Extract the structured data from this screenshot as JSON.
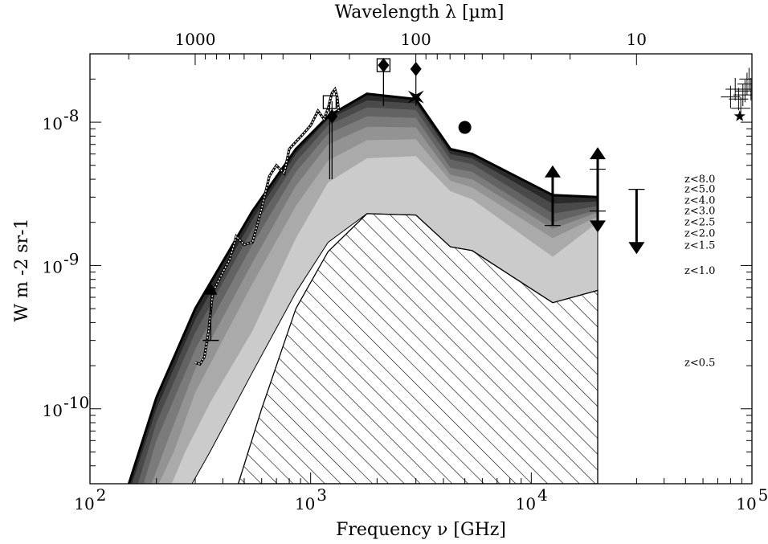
{
  "chart_data": {
    "type": "area",
    "xscale": "log",
    "yscale": "log",
    "xlim": [
      100,
      100000
    ],
    "ylim": [
      3e-11,
      3e-08
    ],
    "xlabel": "Frequency ν [GHz]",
    "ylabel": "W m -2 sr-1",
    "top_axis_label": "Wavelength λ [µm]",
    "x_tick_labels": [
      {
        "value": 100,
        "base": "10",
        "exp": "2"
      },
      {
        "value": 1000,
        "base": "10",
        "exp": "3"
      },
      {
        "value": 10000,
        "base": "10",
        "exp": "4"
      },
      {
        "value": 100000,
        "base": "10",
        "exp": "5"
      }
    ],
    "y_tick_labels": [
      {
        "value": 1e-10,
        "base": "10",
        "exp": "-10"
      },
      {
        "value": 1e-09,
        "base": "10",
        "exp": "-9"
      },
      {
        "value": 1e-08,
        "base": "10",
        "exp": "-8"
      }
    ],
    "top_tick_labels": [
      {
        "freq": 299.8,
        "label": "1000"
      },
      {
        "freq": 2998,
        "label": "100"
      },
      {
        "freq": 29980,
        "label": "10"
      }
    ],
    "series": [
      {
        "name": "z<8.0",
        "fill": "#2a2a2a",
        "x": [
          150,
          200,
          300,
          545,
          857,
          1200,
          1800,
          3000,
          4300,
          5400,
          12500,
          20000
        ],
        "y": [
          3e-11,
          1.2e-10,
          5e-10,
          2.4e-09,
          6.5e-09,
          1.1e-08,
          1.58e-08,
          1.45e-08,
          6.5e-09,
          6e-09,
          3.1e-09,
          3e-09
        ]
      },
      {
        "name": "z<5.0",
        "fill": "#4a4a4a",
        "x": [
          155,
          200,
          300,
          545,
          857,
          1200,
          1800,
          3000,
          4300,
          5400,
          12500,
          20000
        ],
        "y": [
          3e-11,
          1e-10,
          4.2e-10,
          2.1e-09,
          6e-09,
          1.05e-08,
          1.42e-08,
          1.35e-08,
          6e-09,
          5.6e-09,
          2.7e-09,
          2.8e-09
        ]
      },
      {
        "name": "z<4.0",
        "fill": "#636363",
        "x": [
          165,
          200,
          300,
          545,
          857,
          1200,
          1800,
          3000,
          4300,
          5400,
          12500,
          20000
        ],
        "y": [
          3e-11,
          8e-11,
          3.4e-10,
          1.8e-09,
          5.3e-09,
          9.5e-09,
          1.27e-08,
          1.22e-08,
          5.5e-09,
          5.1e-09,
          2.3e-09,
          2.6e-09
        ]
      },
      {
        "name": "z<3.0",
        "fill": "#7b7b7b",
        "x": [
          175,
          200,
          300,
          545,
          857,
          1200,
          1800,
          3000,
          4300,
          5400,
          12500,
          20000
        ],
        "y": [
          3e-11,
          6e-11,
          2.6e-10,
          1.4e-09,
          4.5e-09,
          8.3e-09,
          1.1e-08,
          1.07e-08,
          4.8e-09,
          4.5e-09,
          2e-09,
          2.45e-09
        ]
      },
      {
        "name": "z<2.5",
        "fill": "#939393",
        "x": [
          190,
          220,
          300,
          545,
          857,
          1200,
          1800,
          3000,
          4300,
          5400,
          12500,
          20000
        ],
        "y": [
          3e-11,
          5.5e-11,
          1.9e-10,
          1.05e-09,
          3.6e-09,
          7e-09,
          9.3e-09,
          9.2e-09,
          4.3e-09,
          4e-09,
          1.8e-09,
          2.35e-09
        ]
      },
      {
        "name": "z<2.0",
        "fill": "#aaaaaa",
        "x": [
          205,
          240,
          300,
          545,
          857,
          1200,
          1800,
          3000,
          4300,
          5400,
          12500,
          20000
        ],
        "y": [
          3e-11,
          5e-11,
          1.3e-10,
          7.5e-10,
          2.6e-09,
          5.4e-09,
          7.5e-09,
          7.6e-09,
          3.9e-09,
          3.5e-09,
          1.55e-09,
          2.2e-09
        ]
      },
      {
        "name": "z<1.5",
        "fill": "#cbcbcb",
        "x": [
          235,
          270,
          350,
          545,
          857,
          1200,
          1800,
          3000,
          4300,
          5400,
          12500,
          20000
        ],
        "y": [
          3e-11,
          5e-11,
          1.1e-10,
          3.5e-10,
          1.55e-09,
          3.8e-09,
          5.6e-09,
          5.8e-09,
          3.3e-09,
          2.9e-09,
          1.15e-09,
          2e-09
        ]
      },
      {
        "name": "z<1.0",
        "fill": "#ffffff",
        "x": [
          290,
          350,
          545,
          857,
          1200,
          1800,
          3000,
          4300,
          5400,
          12500,
          20000
        ],
        "y": [
          3e-11,
          5e-11,
          1.8e-10,
          6.5e-10,
          1.45e-09,
          2.3e-09,
          2.25e-09,
          1.35e-09,
          1.27e-09,
          5.5e-10,
          6.7e-10
        ]
      },
      {
        "name": "z<0.5",
        "fill": "hatch",
        "x": [
          470,
          600,
          857,
          1200,
          1800,
          3000,
          4300,
          5400,
          12500,
          20000
        ],
        "y": [
          3e-11,
          1e-10,
          5e-10,
          1.25e-09,
          2.3e-09,
          2.25e-09,
          1.35e-09,
          1.27e-09,
          5.5e-10,
          6.7e-10
        ]
      }
    ],
    "z_labels": [
      {
        "label": "z<8.0",
        "y": 4e-09
      },
      {
        "label": "z<5.0",
        "y": 3.4e-09
      },
      {
        "label": "z<4.0",
        "y": 2.85e-09
      },
      {
        "label": "z<3.0",
        "y": 2.4e-09
      },
      {
        "label": "z<2.5",
        "y": 2e-09
      },
      {
        "label": "z<2.0",
        "y": 1.67e-09
      },
      {
        "label": "z<1.5",
        "y": 1.38e-09
      },
      {
        "label": "z<1.0",
        "y": 9.2e-10
      },
      {
        "label": "z<0.5",
        "y": 2.1e-10
      }
    ],
    "observed_spectrum": {
      "x": [
        300,
        315,
        330,
        345,
        360,
        400,
        430,
        460,
        500,
        545,
        600,
        650,
        700,
        760,
        800,
        857,
        920,
        1000,
        1080,
        1150,
        1200,
        1250,
        1290,
        1320,
        1340
      ],
      "y": [
        2.1e-10,
        2.05e-10,
        2.3e-10,
        3.5e-10,
        6.5e-10,
        9e-10,
        1.1e-09,
        1.6e-09,
        1.4e-09,
        1.45e-09,
        2.5e-09,
        4.2e-09,
        5e-09,
        4.4e-09,
        6.5e-09,
        7.3e-09,
        8.2e-09,
        9.5e-09,
        1.2e-08,
        1.05e-08,
        1.25e-08,
        1.6e-08,
        1.7e-08,
        1.5e-08,
        1.2e-08
      ]
    },
    "markers": [
      {
        "symbol": "triangle-up",
        "x": 353,
        "y": 6.6e-10,
        "err_lo": 3e-10,
        "err_hi": 6.6e-10
      },
      {
        "symbol": "open-square",
        "x": 1220,
        "y": 1.38e-08,
        "err_lo": 4e-09,
        "err_hi": 1.38e-08
      },
      {
        "symbol": "diamond",
        "x": 1250,
        "y": 1.1e-08,
        "err_lo": 4e-09,
        "err_hi": 1.4e-08
      },
      {
        "symbol": "open-square",
        "x": 2140,
        "y": 2.5e-08,
        "err_lo": 1.3e-08,
        "err_hi": 2.5e-08
      },
      {
        "symbol": "diamond",
        "x": 2140,
        "y": 2.5e-08,
        "err_lo": 1.3e-08,
        "err_hi": 2.8e-08
      },
      {
        "symbol": "diamond",
        "x": 3000,
        "y": 2.35e-08,
        "err_lo": 1.7e-08,
        "err_hi": 2.35e-08
      },
      {
        "symbol": "star4",
        "x": 3000,
        "y": 1.5e-08,
        "err_lo": 1.3e-08,
        "err_hi": 1.7e-08
      },
      {
        "symbol": "circle",
        "x": 5000,
        "y": 9.2e-09,
        "err_lo": 9.2e-09,
        "err_hi": 9.2e-09
      },
      {
        "symbol": "star",
        "x": 88000,
        "y": 1.1e-08,
        "err_lo": 1.1e-08,
        "err_hi": 1.1e-08
      }
    ],
    "lower_limits": [
      {
        "x": 12500,
        "y": 1.9e-09,
        "top": 5e-09
      },
      {
        "x": 20000,
        "y": 2.4e-09,
        "top": 6.7e-09
      }
    ],
    "upper_limits": [
      {
        "x": 20000,
        "y": 4.7e-09,
        "bottom": 1.7e-09
      },
      {
        "x": 30000,
        "y": 3.4e-09,
        "bottom": 1.2e-09
      }
    ],
    "crosses": [
      {
        "x": 80000,
        "y": 1.5e-08
      },
      {
        "x": 84000,
        "y": 1.7e-08
      },
      {
        "x": 87000,
        "y": 1.45e-08
      },
      {
        "x": 89000,
        "y": 1.25e-08
      },
      {
        "x": 91000,
        "y": 1.55e-08
      },
      {
        "x": 93000,
        "y": 1.65e-08
      },
      {
        "x": 95000,
        "y": 1.85e-08
      },
      {
        "x": 97000,
        "y": 2e-08
      },
      {
        "x": 99000,
        "y": 1.7e-08
      }
    ],
    "grid": false
  }
}
